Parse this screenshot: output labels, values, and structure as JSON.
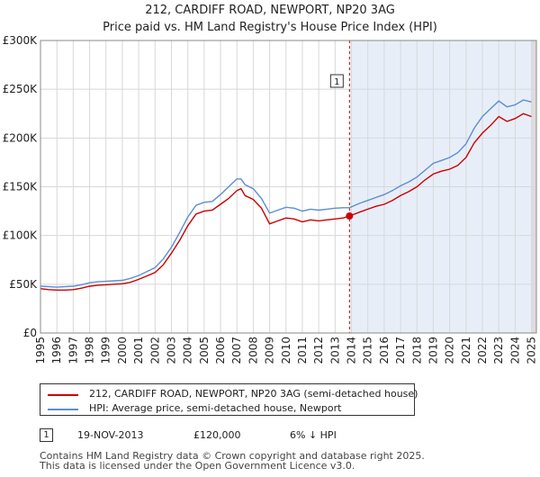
{
  "chart_data": {
    "type": "line",
    "title": "212, CARDIFF ROAD, NEWPORT, NP20 3AG",
    "subtitle": "Price paid vs. HM Land Registry's House Price Index (HPI)",
    "xlabel": "",
    "ylabel": "",
    "xlim": [
      1995,
      2025.3
    ],
    "ylim": [
      0,
      300000
    ],
    "x_ticks": [
      1995,
      1996,
      1997,
      1998,
      1999,
      2000,
      2001,
      2002,
      2003,
      2004,
      2005,
      2006,
      2007,
      2008,
      2009,
      2010,
      2011,
      2012,
      2013,
      2014,
      2015,
      2016,
      2017,
      2018,
      2019,
      2020,
      2021,
      2022,
      2023,
      2024,
      2025
    ],
    "x_tick_labels": [
      "1995",
      "1996",
      "1997",
      "1998",
      "1999",
      "2000",
      "2001",
      "2002",
      "2003",
      "2004",
      "2005",
      "2006",
      "2007",
      "2008",
      "2009",
      "2010",
      "2011",
      "2012",
      "2013",
      "2014",
      "2015",
      "2016",
      "2017",
      "2018",
      "2019",
      "2020",
      "2021",
      "2022",
      "2023",
      "2024",
      "2025"
    ],
    "y_ticks": [
      0,
      50000,
      100000,
      150000,
      200000,
      250000,
      300000
    ],
    "y_tick_labels": [
      "£0",
      "£50K",
      "£100K",
      "£150K",
      "£200K",
      "£250K",
      "£300K"
    ],
    "grid": true,
    "series": [
      {
        "name": "212, CARDIFF ROAD, NEWPORT, NP20 3AG (semi-detached house)",
        "color": "#cc0000",
        "x": [
          1995,
          1995.5,
          1996,
          1996.5,
          1997,
          1997.5,
          1998,
          1998.5,
          1999,
          1999.5,
          2000,
          2000.5,
          2001,
          2001.5,
          2002,
          2002.5,
          2003,
          2003.5,
          2004,
          2004.5,
          2005,
          2005.5,
          2006,
          2006.5,
          2007,
          2007.25,
          2007.5,
          2008,
          2008.5,
          2009,
          2009.5,
          2010,
          2010.5,
          2011,
          2011.5,
          2012,
          2012.5,
          2013,
          2013.5,
          2013.88,
          2014.5,
          2015,
          2015.5,
          2016,
          2016.5,
          2017,
          2017.5,
          2018,
          2018.5,
          2019,
          2019.5,
          2020,
          2020.5,
          2021,
          2021.5,
          2022,
          2022.5,
          2023,
          2023.5,
          2024,
          2024.5,
          2025
        ],
        "y": [
          45500,
          44500,
          44000,
          44000,
          44500,
          46000,
          48000,
          49000,
          49500,
          50000,
          50500,
          52000,
          55000,
          58500,
          62000,
          70000,
          82000,
          95000,
          110000,
          122000,
          125000,
          126000,
          132000,
          138000,
          146000,
          148000,
          141000,
          137000,
          128000,
          112000,
          115000,
          118000,
          117000,
          114000,
          116000,
          115000,
          116000,
          117000,
          118000,
          120000,
          124000,
          127000,
          130000,
          132000,
          136000,
          141000,
          145000,
          150000,
          157000,
          163000,
          166000,
          168000,
          172000,
          180000,
          195000,
          205000,
          213000,
          222000,
          217000,
          220000,
          225000,
          222000
        ]
      },
      {
        "name": "HPI: Average price, semi-detached house, Newport",
        "color": "#5b8fd1",
        "x": [
          1995,
          1995.5,
          1996,
          1996.5,
          1997,
          1997.5,
          1998,
          1998.5,
          1999,
          1999.5,
          2000,
          2000.5,
          2001,
          2001.5,
          2002,
          2002.5,
          2003,
          2003.5,
          2004,
          2004.5,
          2005,
          2005.5,
          2006,
          2006.5,
          2007,
          2007.25,
          2007.5,
          2008,
          2008.5,
          2009,
          2009.5,
          2010,
          2010.5,
          2011,
          2011.5,
          2012,
          2012.5,
          2013,
          2013.5,
          2013.88,
          2014.5,
          2015,
          2015.5,
          2016,
          2016.5,
          2017,
          2017.5,
          2018,
          2018.5,
          2019,
          2019.5,
          2020,
          2020.5,
          2021,
          2021.5,
          2022,
          2022.5,
          2023,
          2023.5,
          2024,
          2024.5,
          2025
        ],
        "y": [
          48000,
          47500,
          47000,
          47500,
          48000,
          49500,
          51500,
          52500,
          53000,
          53500,
          54000,
          56000,
          59000,
          63000,
          67000,
          76000,
          88000,
          103000,
          119000,
          131000,
          134000,
          135000,
          142000,
          150000,
          158000,
          158000,
          152000,
          148000,
          138000,
          123000,
          126000,
          129000,
          128000,
          125000,
          127000,
          126000,
          127000,
          128000,
          128500,
          128500,
          133000,
          136000,
          139000,
          142000,
          146000,
          151000,
          155000,
          160000,
          167000,
          174000,
          177000,
          180000,
          185000,
          194000,
          210000,
          222000,
          230000,
          238000,
          232000,
          234000,
          239000,
          237000
        ]
      }
    ],
    "annotations": [
      {
        "label": "1",
        "x": 2013.88,
        "y": 120000,
        "marker_color": "#cc0000",
        "line_color": "#cc0000",
        "shade_color": "#e8eef8"
      }
    ]
  },
  "legend": {
    "items": [
      {
        "label": "212, CARDIFF ROAD, NEWPORT, NP20 3AG (semi-detached house)",
        "color": "#cc0000"
      },
      {
        "label": "HPI: Average price, semi-detached house, Newport",
        "color": "#5b8fd1"
      }
    ]
  },
  "sales": [
    {
      "number": "1",
      "date": "19-NOV-2013",
      "price": "£120,000",
      "hpi_change": "6% ↓ HPI"
    }
  ],
  "footer": {
    "line1": "Contains HM Land Registry data © Crown copyright and database right 2025.",
    "line2": "This data is licensed under the Open Government Licence v3.0."
  }
}
